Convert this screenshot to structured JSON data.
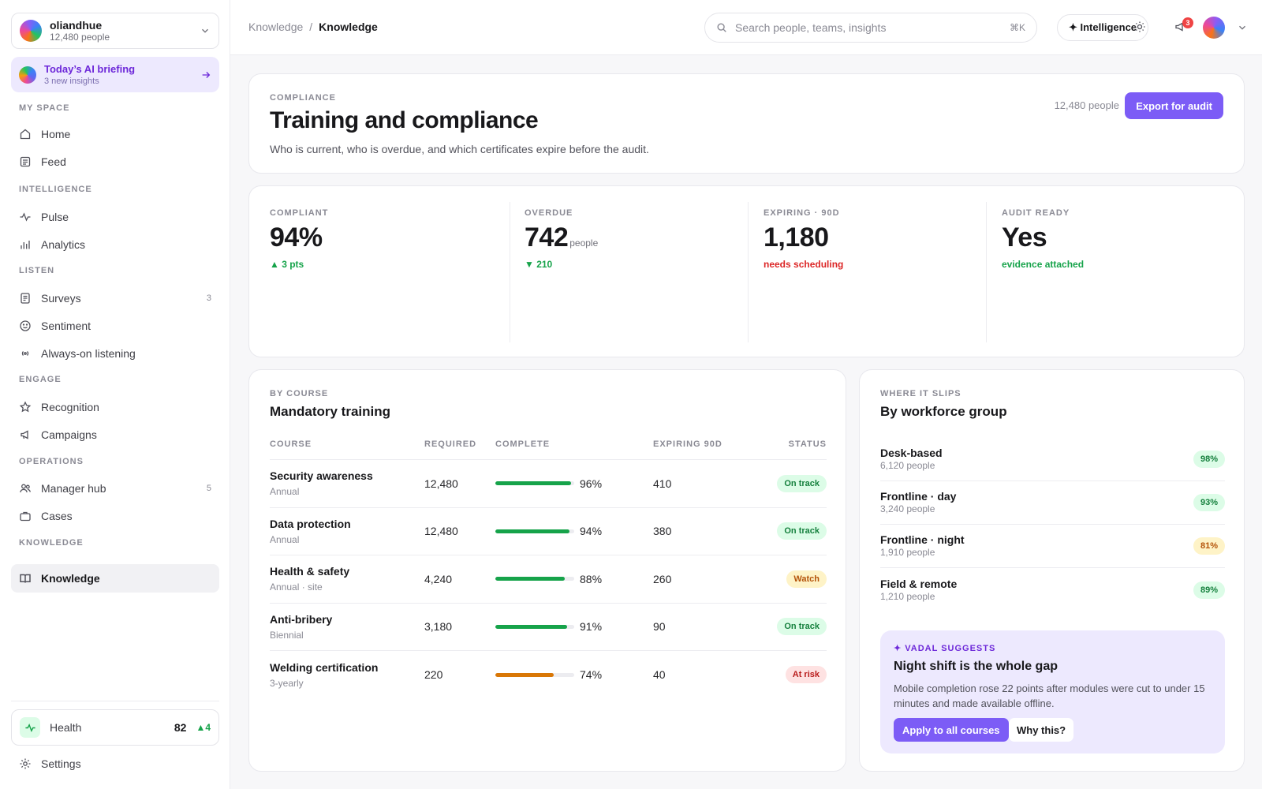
{
  "org": {
    "name": "oliandhue",
    "people": "12,480 people"
  },
  "briefing": {
    "title": "Today’s AI briefing",
    "subtitle": "3 new insights"
  },
  "nav": {
    "sections": {
      "my_space": "MY SPACE",
      "intelligence": "INTELLIGENCE",
      "listen": "LISTEN",
      "engage": "ENGAGE",
      "operations": "OPERATIONS",
      "knowledge": "KNOWLEDGE"
    },
    "items": {
      "home": "Home",
      "feed": "Feed",
      "pulse": "Pulse",
      "analytics": "Analytics",
      "surveys": "Surveys",
      "surveys_count": "3",
      "sentiment": "Sentiment",
      "listening": "Always-on listening",
      "recognition": "Recognition",
      "campaigns": "Campaigns",
      "manager_hub": "Manager hub",
      "manager_hub_count": "5",
      "cases": "Cases",
      "knowledge": "Knowledge"
    }
  },
  "health": {
    "label": "Health",
    "value": "82",
    "delta": "▲4"
  },
  "settings": "Settings",
  "topbar": {
    "breadcrumb_parent": "Knowledge",
    "breadcrumb_sep": "/",
    "breadcrumb_current": "Knowledge",
    "search_placeholder": "Search people, teams, insights",
    "search_shortcut": "⌘K",
    "intelligence_label": "✦ Intelligence",
    "notification_count": "3"
  },
  "header": {
    "eyebrow": "COMPLIANCE",
    "title": "Training and compliance",
    "subtitle": "Who is current, who is overdue, and which certificates expire before the audit.",
    "people": "12,480 people",
    "export_label": "Export for audit"
  },
  "kpis": [
    {
      "label": "COMPLIANT",
      "value": "94%",
      "unit": "",
      "sub": "▲ 3 pts",
      "tone": "green"
    },
    {
      "label": "OVERDUE",
      "value": "742",
      "unit": "people",
      "sub": "▼ 210",
      "tone": "green"
    },
    {
      "label": "EXPIRING · 90D",
      "value": "1,180",
      "unit": "",
      "sub": "needs scheduling",
      "tone": "red"
    },
    {
      "label": "AUDIT READY",
      "value": "Yes",
      "unit": "",
      "sub": "evidence attached",
      "tone": "green"
    }
  ],
  "courses": {
    "eyebrow": "BY COURSE",
    "title": "Mandatory training",
    "headers": {
      "course": "COURSE",
      "required": "REQUIRED",
      "complete": "COMPLETE",
      "expiring": "EXPIRING 90D",
      "status": "STATUS"
    },
    "rows": [
      {
        "name": "Security awareness",
        "freq": "Annual",
        "required": "12,480",
        "pct": "96%",
        "fraction": 0.96,
        "expiring": "410",
        "status": "On track",
        "tone": "ok"
      },
      {
        "name": "Data protection",
        "freq": "Annual",
        "required": "12,480",
        "pct": "94%",
        "fraction": 0.94,
        "expiring": "380",
        "status": "On track",
        "tone": "ok"
      },
      {
        "name": "Health & safety",
        "freq": "Annual · site",
        "required": "4,240",
        "pct": "88%",
        "fraction": 0.88,
        "expiring": "260",
        "status": "Watch",
        "tone": "watch"
      },
      {
        "name": "Anti-bribery",
        "freq": "Biennial",
        "required": "3,180",
        "pct": "91%",
        "fraction": 0.91,
        "expiring": "90",
        "status": "On track",
        "tone": "ok"
      },
      {
        "name": "Welding certification",
        "freq": "3-yearly",
        "required": "220",
        "pct": "74%",
        "fraction": 0.74,
        "expiring": "40",
        "status": "At risk",
        "tone": "risk"
      }
    ]
  },
  "groups": {
    "eyebrow": "WHERE IT SLIPS",
    "title": "By workforce group",
    "rows": [
      {
        "name": "Desk-based",
        "people": "6,120 people",
        "pct": "98%",
        "tone": "ok"
      },
      {
        "name": "Frontline · day",
        "people": "3,240 people",
        "pct": "93%",
        "tone": "ok"
      },
      {
        "name": "Frontline · night",
        "people": "1,910 people",
        "pct": "81%",
        "tone": "watch"
      },
      {
        "name": "Field & remote",
        "people": "1,210 people",
        "pct": "89%",
        "tone": "ok"
      }
    ]
  },
  "suggestion": {
    "eyebrow": "✦ VADAL SUGGESTS",
    "title": "Night shift is the whole gap",
    "body": "Mobile completion rose 22 points after modules were cut to under 15 minutes and made available offline.",
    "apply_label": "Apply to all courses",
    "why_label": "Why this?"
  },
  "colors": {
    "accent": "#7c5cf6",
    "good": "#16a34a",
    "warn": "#d97706",
    "bad": "#dc2626"
  }
}
